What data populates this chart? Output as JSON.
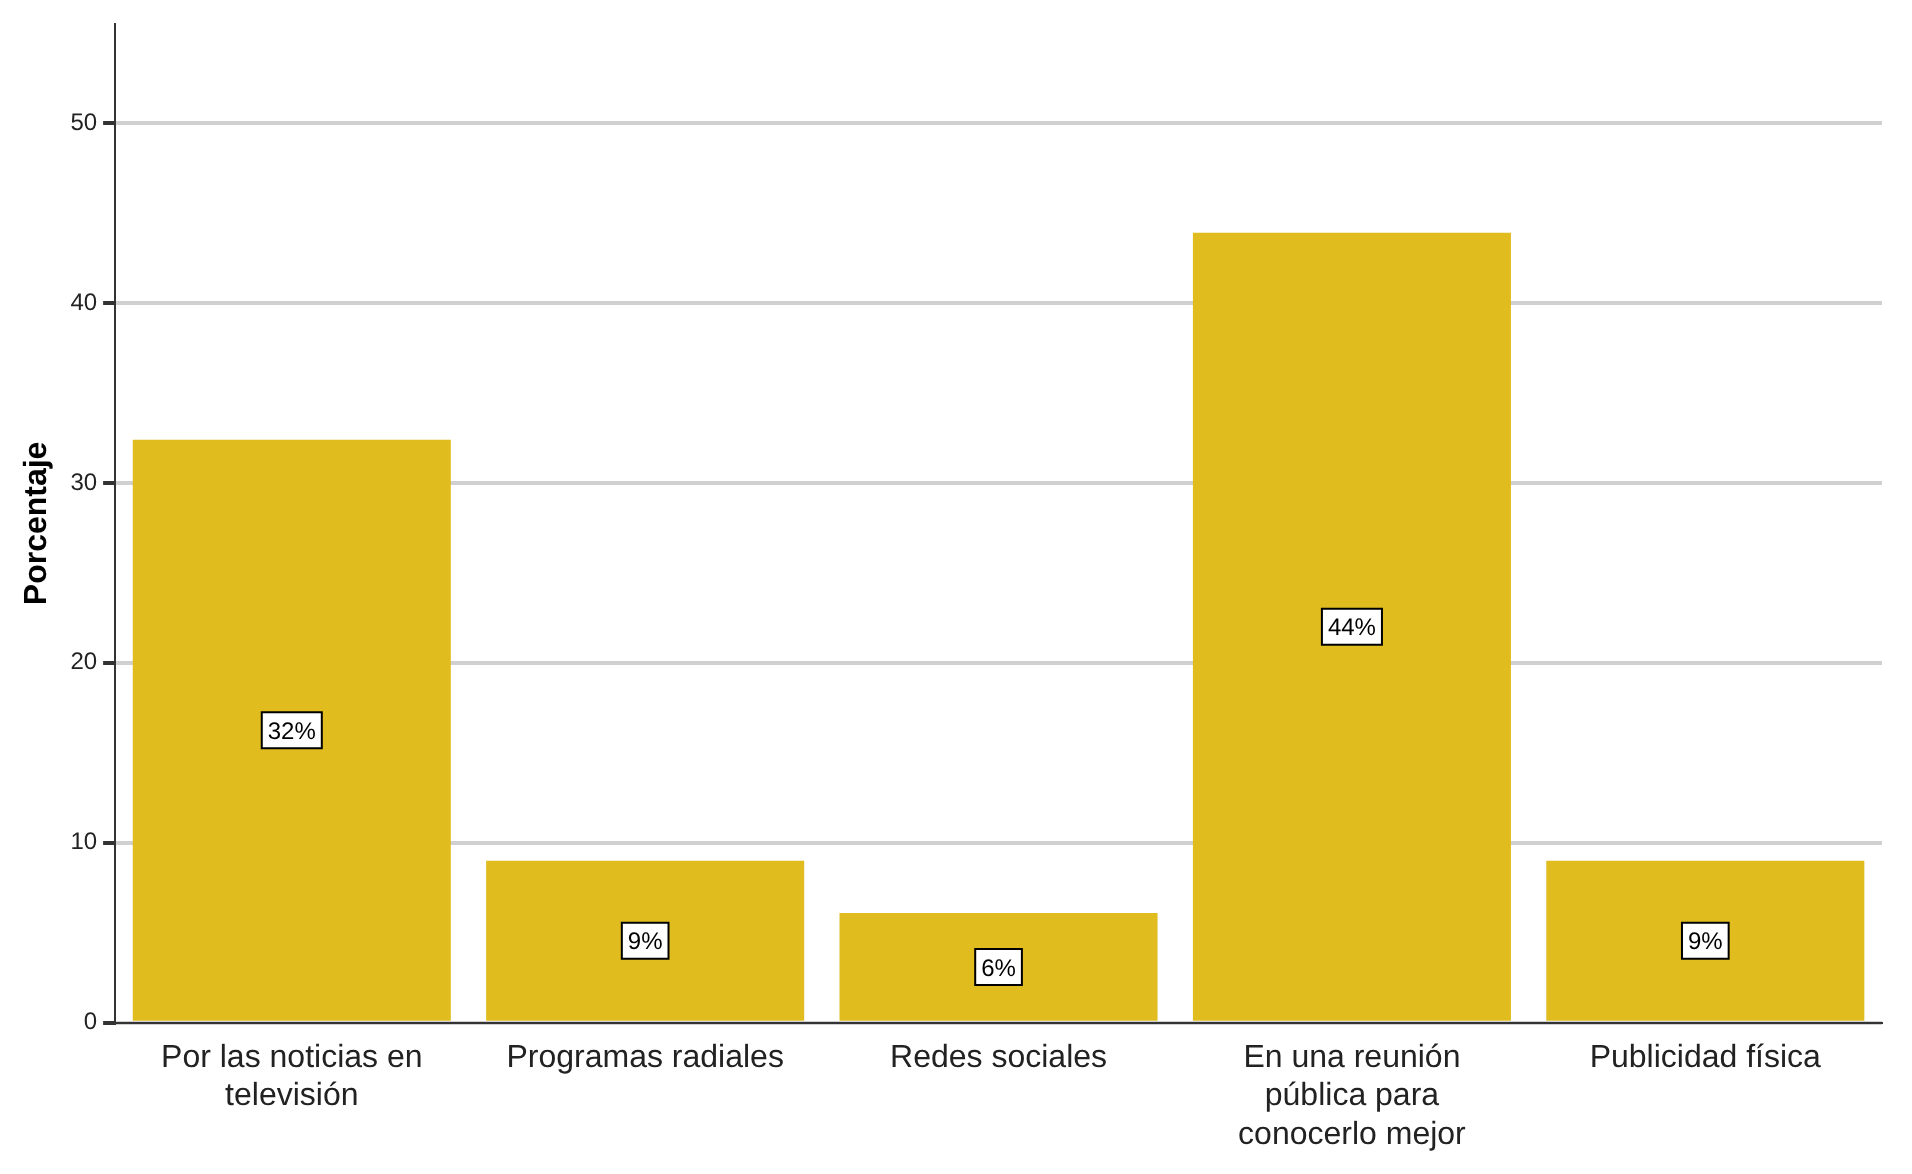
{
  "chart_data": {
    "type": "bar",
    "ylabel": "Porcentaje",
    "categories": [
      "Por las noticias en televisión",
      "Programas radiales",
      "Redes sociales",
      "En una reunión pública para conocerlo mejor",
      "Publicidad física"
    ],
    "values": [
      32.4,
      9.0,
      6.1,
      43.9,
      9.0
    ],
    "value_labels": [
      "32%",
      "9%",
      "6%",
      "44%",
      "9%"
    ],
    "color": "#e0bc1f",
    "ylim": [
      0,
      55.5
    ],
    "yticks": [
      0,
      10,
      20,
      30,
      40,
      50
    ],
    "grid": "y",
    "legend": false
  }
}
